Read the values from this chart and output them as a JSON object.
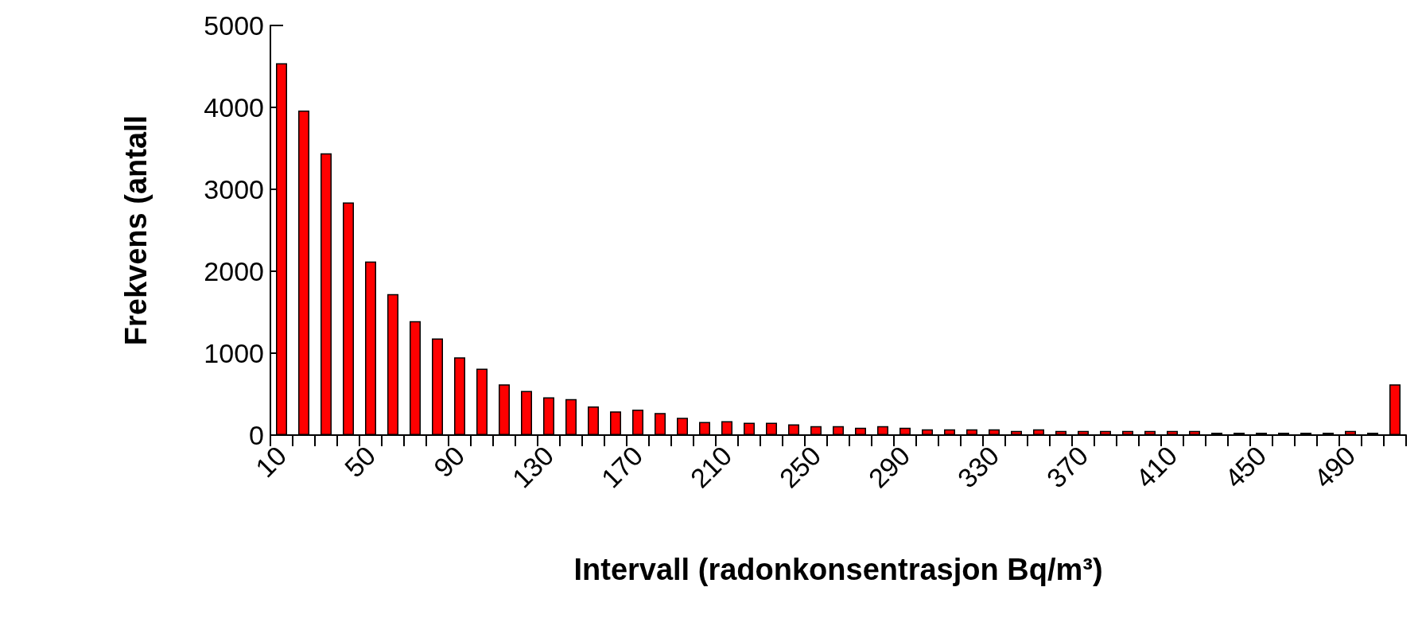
{
  "chart_data": {
    "type": "bar",
    "xlabel": "Intervall (radonkonsentrasjon Bq/m³)",
    "ylabel": "Frekvens (antall",
    "categories": [
      "10",
      null,
      null,
      null,
      "50",
      null,
      null,
      null,
      "90",
      null,
      null,
      null,
      "130",
      null,
      null,
      null,
      "170",
      null,
      null,
      null,
      "210",
      null,
      null,
      null,
      "250",
      null,
      null,
      null,
      "290",
      null,
      null,
      null,
      "330",
      null,
      null,
      null,
      "370",
      null,
      null,
      null,
      "410",
      null,
      null,
      null,
      "450",
      null,
      null,
      null,
      "490",
      null,
      null
    ],
    "values": [
      4540,
      3960,
      3440,
      2840,
      2120,
      1720,
      1390,
      1180,
      950,
      810,
      620,
      540,
      460,
      440,
      350,
      290,
      310,
      270,
      210,
      160,
      170,
      150,
      150,
      130,
      110,
      110,
      90,
      110,
      90,
      70,
      70,
      70,
      70,
      50,
      70,
      50,
      50,
      50,
      50,
      50,
      50,
      50,
      30,
      30,
      30,
      30,
      30,
      30,
      50,
      30,
      620
    ],
    "color": "#ff0000",
    "ylim": [
      0,
      5000
    ],
    "yticks": [
      0,
      1000,
      2000,
      3000,
      4000,
      5000
    ]
  }
}
